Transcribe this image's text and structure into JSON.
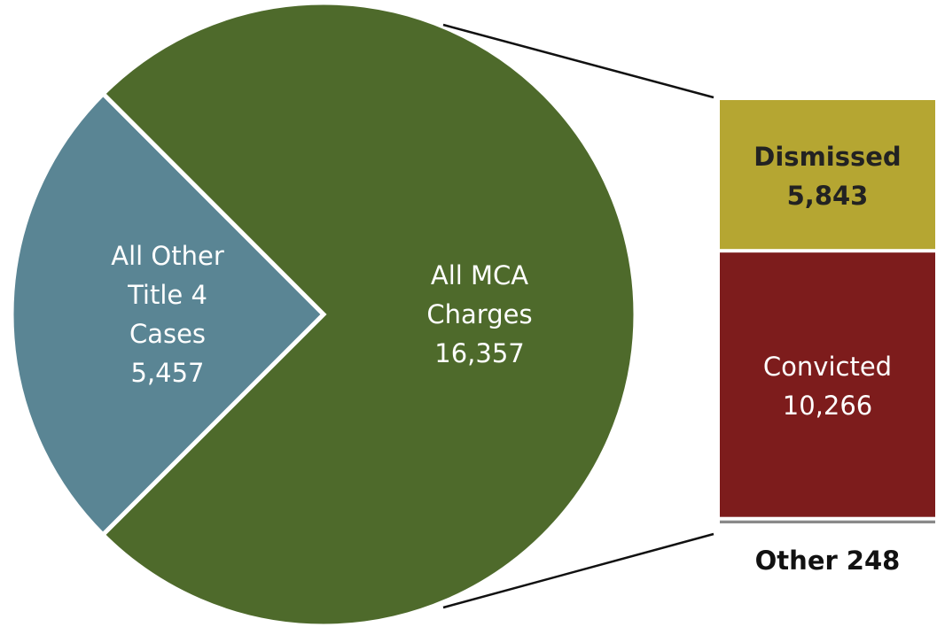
{
  "chart_data": {
    "type": "bar-of-pie",
    "categories": [
      "All Other Title 4 Cases",
      "All MCA Charges"
    ],
    "values": [
      5457,
      16357
    ],
    "value_labels": [
      "5,457",
      "16,357"
    ],
    "colors": [
      "#5a8594",
      "#4e6a2b"
    ],
    "breakdown": {
      "categories": [
        "Dismissed",
        "Convicted",
        "Other"
      ],
      "values": [
        5843,
        10266,
        248
      ],
      "value_labels": [
        "5,843",
        "10,266",
        "248"
      ],
      "colors": [
        "#b5a632",
        "#7d1c1c",
        "#8a8a8a"
      ]
    }
  }
}
